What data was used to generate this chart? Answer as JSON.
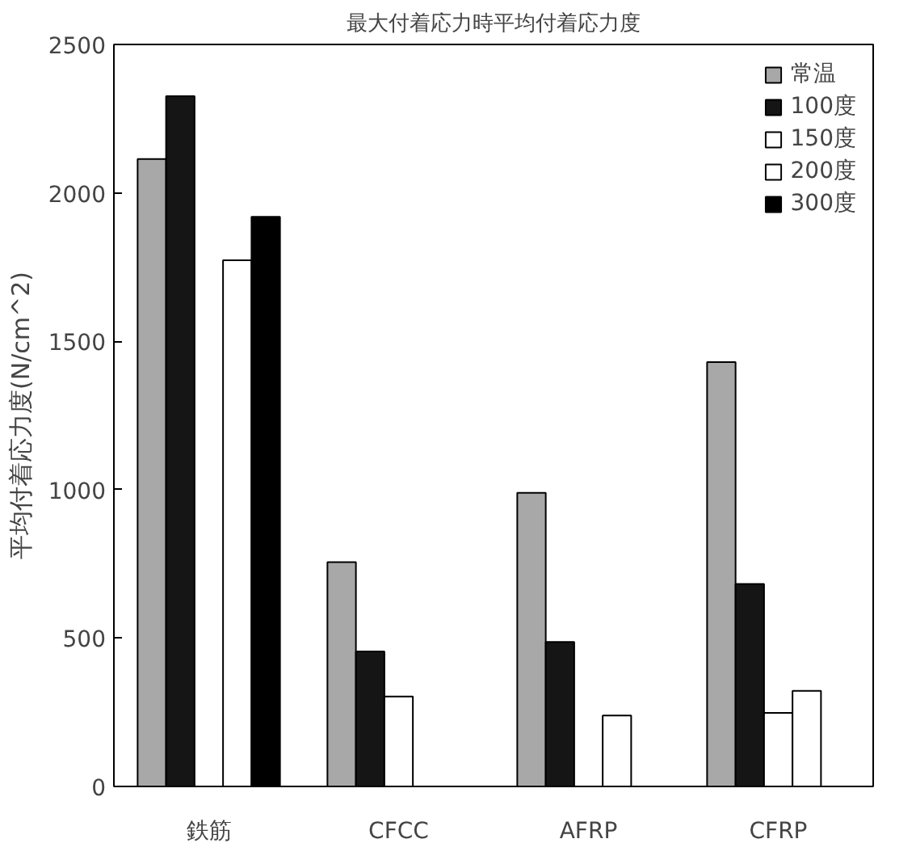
{
  "chart_data": {
    "type": "bar",
    "title": "最大付着応力時平均付着応力度",
    "ylabel": "平均付着応力度(N/cm^2)",
    "categories": [
      "鉄筋",
      "CFCC",
      "AFRP",
      "CFRP"
    ],
    "series": [
      {
        "name": "常温",
        "color": "#a8a8a8",
        "values": [
          2114,
          756,
          989,
          1430
        ]
      },
      {
        "name": "100度",
        "color": "#151515",
        "values": [
          2326,
          455,
          487,
          682
        ]
      },
      {
        "name": "150度",
        "color": "#ffffff",
        "values": [
          null,
          303,
          null,
          248
        ]
      },
      {
        "name": "200度",
        "color": "#ffffff",
        "values": [
          1773,
          null,
          239,
          322
        ]
      },
      {
        "name": "300度",
        "color": "#000000",
        "values": [
          1919,
          null,
          null,
          null
        ]
      }
    ],
    "ylim": [
      0,
      2500
    ],
    "yticks": [
      0,
      500,
      1000,
      1500,
      2000,
      2500
    ],
    "grid": false,
    "legend": "top right"
  }
}
